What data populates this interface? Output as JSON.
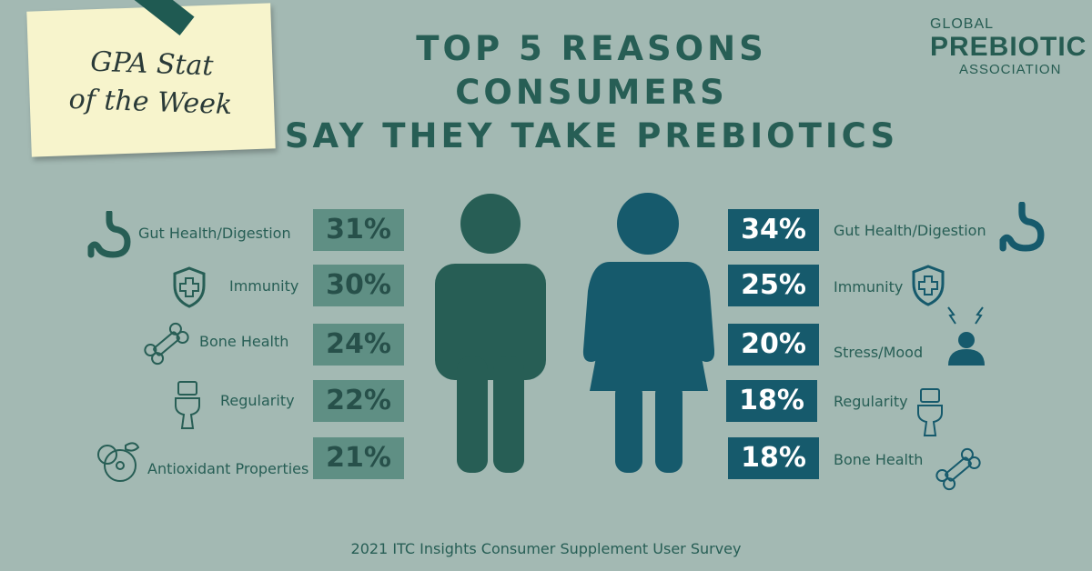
{
  "note": {
    "line1": "GPA Stat",
    "line2": "of the Week"
  },
  "title": {
    "line1": "TOP 5 REASONS CONSUMERS",
    "line2": "SAY THEY TAKE PREBIOTICS"
  },
  "logo": {
    "line1": "GLOBAL",
    "line2": "PREBIOTIC",
    "line3": "ASSOCIATION"
  },
  "men": [
    {
      "label": "Gut Health/Digestion",
      "value": "31%",
      "icon": "stomach-icon"
    },
    {
      "label": "Immunity",
      "value": "30%",
      "icon": "shield-icon"
    },
    {
      "label": "Bone Health",
      "value": "24%",
      "icon": "bone-icon"
    },
    {
      "label": "Regularity",
      "value": "22%",
      "icon": "toilet-icon"
    },
    {
      "label": "Antioxidant Properties",
      "value": "21%",
      "icon": "antioxidant-icon"
    }
  ],
  "women": [
    {
      "label": "Gut Health/Digestion",
      "value": "34%",
      "icon": "stomach-icon"
    },
    {
      "label": "Immunity",
      "value": "25%",
      "icon": "shield-icon"
    },
    {
      "label": "Stress/Mood",
      "value": "20%",
      "icon": "stress-icon"
    },
    {
      "label": "Regularity",
      "value": "18%",
      "icon": "toilet-icon"
    },
    {
      "label": "Bone Health",
      "value": "18%",
      "icon": "bone-icon"
    }
  ],
  "colors": {
    "background": "#a3b9b3",
    "men": "#275e55",
    "women": "#165a6c"
  },
  "footer": "2021 ITC Insights Consumer Supplement User Survey"
}
